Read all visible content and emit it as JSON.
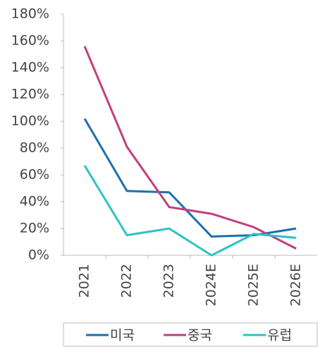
{
  "chart_data": {
    "type": "line",
    "categories": [
      "2021",
      "2022",
      "2023",
      "2024E",
      "2025E",
      "2026E"
    ],
    "series": [
      {
        "name": "미국",
        "color": "#1d6fae",
        "values": [
          102,
          48,
          47,
          14,
          15,
          20
        ]
      },
      {
        "name": "중국",
        "color": "#c23f80",
        "values": [
          156,
          81,
          36,
          31,
          21,
          5
        ]
      },
      {
        "name": "유럽",
        "color": "#2cc3c6",
        "values": [
          67,
          15,
          20,
          0,
          16,
          13
        ]
      }
    ],
    "ylim": [
      0,
      180
    ],
    "yticks": [
      {
        "value": 0,
        "label": "0%"
      },
      {
        "value": 20,
        "label": "20%"
      },
      {
        "value": 40,
        "label": "40%"
      },
      {
        "value": 60,
        "label": "60%"
      },
      {
        "value": 80,
        "label": "80%"
      },
      {
        "value": 100,
        "label": "100%"
      },
      {
        "value": 120,
        "label": "120%"
      },
      {
        "value": 140,
        "label": "140%"
      },
      {
        "value": 160,
        "label": "160%"
      },
      {
        "value": 180,
        "label": "180%"
      }
    ],
    "grid": false,
    "legend": "bottom"
  }
}
